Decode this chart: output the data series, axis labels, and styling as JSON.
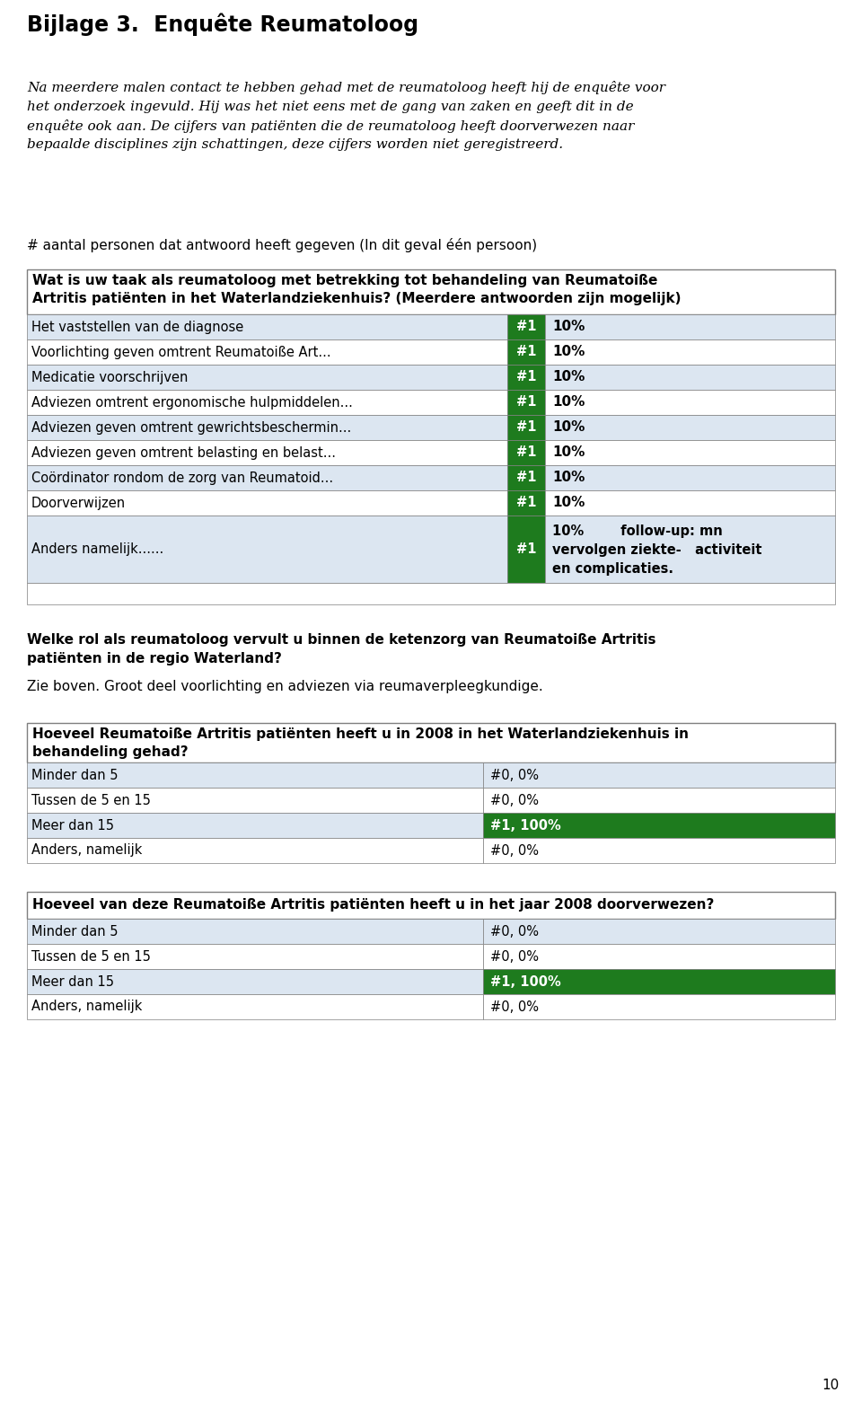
{
  "title": "Bijlage 3.  Enquête Reumatoloog",
  "intro_text": "Na meerdere malen contact te hebben gehad met de reumatoloog heeft hij de enquête voor\nhet onderzoek ingevuld. Hij was het niet eens met de gang van zaken en geeft dit in de\nenquête ook aan. De cijfers van patiënten die de reumatoloog heeft doorverwezen naar\nbepaalde disciplines zijn schattingen, deze cijfers worden niet geregistreerd.",
  "count_text": "# aantal personen dat antwoord heeft gegeven (In dit geval één persoon)",
  "table1_header": "Wat is uw taak als reumatoloog met betrekking tot behandeling van Reumatoiße\nArtritis patiënten in het Waterlandziekenhuis? (Meerdere antwoorden zijn mogelijk)",
  "table1_rows": [
    [
      "Het vaststellen van de diagnose",
      "#1",
      "10%"
    ],
    [
      "Voorlichting geven omtrent Reumatoiße Art...",
      "#1",
      "10%"
    ],
    [
      "Medicatie voorschrijven",
      "#1",
      "10%"
    ],
    [
      "Adviezen omtrent ergonomische hulpmiddelen...",
      "#1",
      "10%"
    ],
    [
      "Adviezen geven omtrent gewrichtsbeschermin...",
      "#1",
      "10%"
    ],
    [
      "Adviezen geven omtrent belasting en belast...",
      "#1",
      "10%"
    ],
    [
      "Coördinator rondom de zorg van Reumatoid...",
      "#1",
      "10%"
    ],
    [
      "Doorverwijzen",
      "#1",
      "10%"
    ],
    [
      "Anders namelijk......",
      "#1",
      "10%        follow-up: mn\nvervolgen ziekte-   activiteit\nen complicaties."
    ]
  ],
  "q2_bold": "Welke rol als reumatoloog vervult u binnen de ketenzorg van Reumatoiße Artritis\npatiënten in de regio Waterland?",
  "q2_answer": "Zie boven. Groot deel voorlichting en adviezen via reumaverpleegkundige.",
  "table2_header": "Hoeveel Reumatoiße Artritis patiënten heeft u in 2008 in het Waterlandziekenhuis in\nbehandeling gehad?",
  "table2_rows": [
    [
      "Minder dan 5",
      "#0, 0%",
      false
    ],
    [
      "Tussen de 5 en 15",
      "#0, 0%",
      false
    ],
    [
      "Meer dan 15",
      "#1, 100%",
      true
    ],
    [
      "Anders, namelijk",
      "#0, 0%",
      false
    ]
  ],
  "table3_header": "Hoeveel van deze Reumatoiße Artritis patiënten heeft u in het jaar 2008 doorverwezen?",
  "table3_rows": [
    [
      "Minder dan 5",
      "#0, 0%",
      false
    ],
    [
      "Tussen de 5 en 15",
      "#0, 0%",
      false
    ],
    [
      "Meer dan 15",
      "#1, 100%",
      true
    ],
    [
      "Anders, namelijk",
      "#0, 0%",
      false
    ]
  ],
  "page_number": "10",
  "green_color": "#1e7b1e",
  "light_blue_bg": "#dce6f1",
  "table_border_color": "#7f7f7f",
  "white": "#ffffff"
}
